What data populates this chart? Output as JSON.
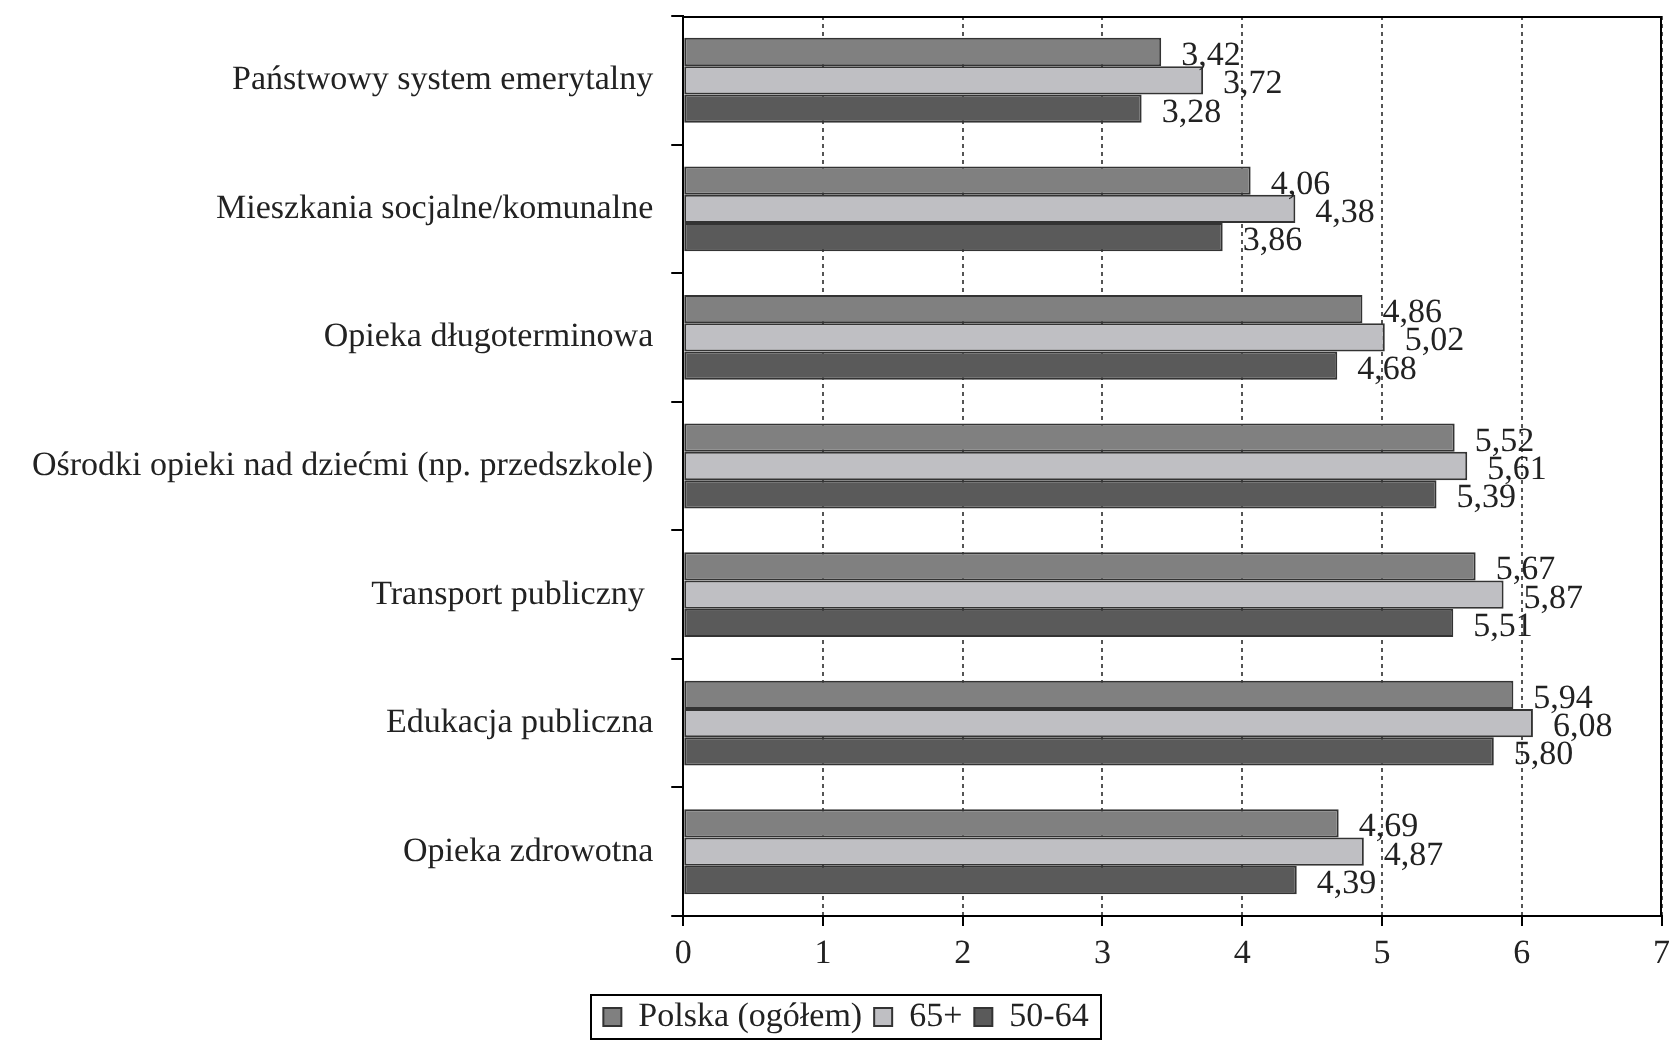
{
  "chart_data": {
    "type": "bar",
    "orientation": "horizontal",
    "categories": [
      "Państwowy system emerytalny",
      "Mieszkania socjalne/komunalne",
      "Opieka długoterminowa",
      "Ośrodki opieki nad dziećmi (np. przedszkole)",
      "Transport publiczny ",
      "Edukacja publiczna",
      "Opieka zdrowotna"
    ],
    "series": [
      {
        "name": "Polska (ogółem)",
        "color": "#808080",
        "values": [
          3.42,
          4.06,
          4.86,
          5.52,
          5.67,
          5.94,
          4.69
        ],
        "value_labels": [
          "3,42",
          "4,06",
          "4,86",
          "5,52",
          "5,67",
          "5,94",
          "4,69"
        ]
      },
      {
        "name": "65+",
        "color": "#bfbfc3",
        "values": [
          3.72,
          4.38,
          5.02,
          5.61,
          5.87,
          6.08,
          4.87
        ],
        "value_labels": [
          "3,72",
          "4,38",
          "5,02",
          "5,61",
          "5,87",
          "6,08",
          "4,87"
        ]
      },
      {
        "name": "50-64",
        "color": "#5a5a5a",
        "values": [
          3.28,
          3.86,
          4.68,
          5.39,
          5.51,
          5.8,
          4.39
        ],
        "value_labels": [
          "3,28",
          "3,86",
          "4,68",
          "5,39",
          "5,51",
          "5,80",
          "4,39"
        ]
      }
    ],
    "xlim": [
      0,
      7
    ],
    "xticks": [
      0,
      1,
      2,
      3,
      4,
      5,
      6,
      7
    ],
    "grid": "x",
    "legend": "bottom"
  }
}
